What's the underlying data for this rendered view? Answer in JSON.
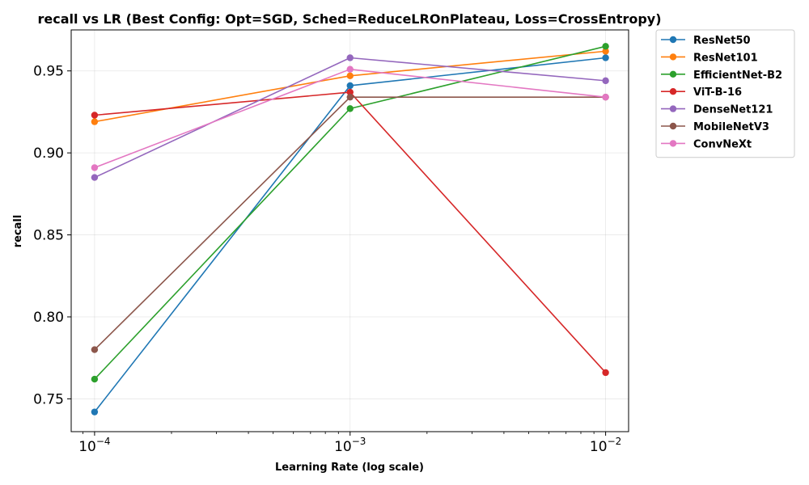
{
  "chart_data": {
    "type": "line",
    "title": "recall vs LR (Best Config: Opt=SGD, Sched=ReduceLROnPlateau, Loss=CrossEntropy)",
    "xlabel": "Learning Rate (log scale)",
    "ylabel": "recall",
    "x_scale": "log",
    "x": [
      0.0001,
      0.001,
      0.01
    ],
    "x_tick_labels": [
      {
        "base": "10",
        "exp": "−4"
      },
      {
        "base": "10",
        "exp": "−3"
      },
      {
        "base": "10",
        "exp": "−2"
      }
    ],
    "xlim": [
      8.1e-05,
      0.0123
    ],
    "ylim": [
      0.73,
      0.975
    ],
    "y_ticks": [
      0.75,
      0.8,
      0.85,
      0.9,
      0.95
    ],
    "y_tick_labels": [
      "0.75",
      "0.80",
      "0.85",
      "0.90",
      "0.95"
    ],
    "grid": true,
    "legend_position": "outside-top-right",
    "series": [
      {
        "name": "ResNet50",
        "color": "#1f77b4",
        "values": [
          0.742,
          0.941,
          0.958
        ]
      },
      {
        "name": "ResNet101",
        "color": "#ff7f0e",
        "values": [
          0.919,
          0.947,
          0.962
        ]
      },
      {
        "name": "EfficientNet-B2",
        "color": "#2ca02c",
        "values": [
          0.762,
          0.927,
          0.965
        ]
      },
      {
        "name": "ViT-B-16",
        "color": "#d62728",
        "values": [
          0.923,
          0.937,
          0.766
        ]
      },
      {
        "name": "DenseNet121",
        "color": "#9467bd",
        "values": [
          0.885,
          0.958,
          0.944
        ]
      },
      {
        "name": "MobileNetV3",
        "color": "#8c564b",
        "values": [
          0.78,
          0.934,
          0.934
        ]
      },
      {
        "name": "ConvNeXt",
        "color": "#e377c2",
        "values": [
          0.891,
          0.951,
          0.934
        ]
      }
    ]
  }
}
